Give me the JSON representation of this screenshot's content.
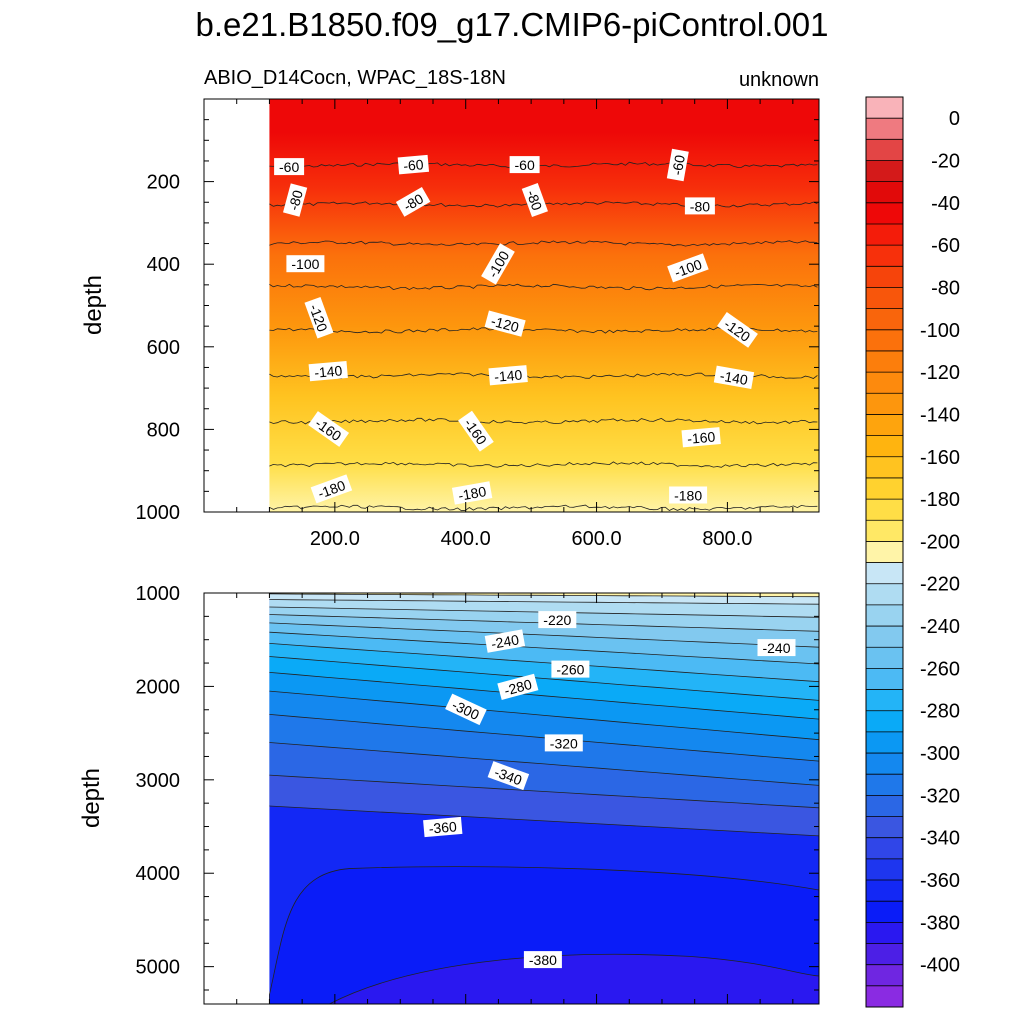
{
  "figure": {
    "title": "b.e21.B1850.f09_g17.CMIP6-piControl.001"
  },
  "chart_data": [
    {
      "type": "contour",
      "panel": "top",
      "left_subtitle": "ABIO_D14Cocn, WPAC_18S-18N",
      "right_subtitle": "unknown",
      "ylabel": "depth",
      "xlabel": "",
      "xlim": [
        0,
        940
      ],
      "ylim": [
        1000,
        0
      ],
      "y_reversed": true,
      "data_x_start": 100,
      "x_ticks": [
        200,
        400,
        600,
        800
      ],
      "x_tick_labels": [
        "200.0",
        "400.0",
        "600.0",
        "800.0"
      ],
      "y_ticks": [
        200,
        400,
        600,
        800,
        1000
      ],
      "y_tick_labels": [
        "200",
        "400",
        "600",
        "800",
        "1000"
      ],
      "contour_levels": [
        -60,
        -80,
        -100,
        -120,
        -140,
        -160,
        -180
      ],
      "contour_depths": [
        160,
        255,
        350,
        455,
        560,
        670,
        780,
        885,
        990
      ],
      "contour_labels": [
        {
          "text": "-60",
          "x": 130,
          "y": 165,
          "angle": 0
        },
        {
          "text": "-60",
          "x": 320,
          "y": 160,
          "angle": -5
        },
        {
          "text": "-60",
          "x": 490,
          "y": 160,
          "angle": 0
        },
        {
          "text": "-60",
          "x": 725,
          "y": 160,
          "angle": -80
        },
        {
          "text": "-80",
          "x": 140,
          "y": 245,
          "angle": -75
        },
        {
          "text": "-80",
          "x": 320,
          "y": 250,
          "angle": -30
        },
        {
          "text": "-80",
          "x": 505,
          "y": 245,
          "angle": 70
        },
        {
          "text": "-80",
          "x": 758,
          "y": 260,
          "angle": 0
        },
        {
          "text": "-100",
          "x": 155,
          "y": 400,
          "angle": 0
        },
        {
          "text": "-100",
          "x": 450,
          "y": 400,
          "angle": -60
        },
        {
          "text": "-100",
          "x": 740,
          "y": 410,
          "angle": -20
        },
        {
          "text": "-120",
          "x": 175,
          "y": 530,
          "angle": 70
        },
        {
          "text": "-120",
          "x": 460,
          "y": 545,
          "angle": 15
        },
        {
          "text": "-120",
          "x": 815,
          "y": 560,
          "angle": 35
        },
        {
          "text": "-140",
          "x": 190,
          "y": 660,
          "angle": -5
        },
        {
          "text": "-140",
          "x": 465,
          "y": 670,
          "angle": -5
        },
        {
          "text": "-140",
          "x": 810,
          "y": 675,
          "angle": 10
        },
        {
          "text": "-160",
          "x": 190,
          "y": 800,
          "angle": 35
        },
        {
          "text": "-160",
          "x": 415,
          "y": 805,
          "angle": 55
        },
        {
          "text": "-160",
          "x": 760,
          "y": 820,
          "angle": -5
        },
        {
          "text": "-180",
          "x": 195,
          "y": 945,
          "angle": -20
        },
        {
          "text": "-180",
          "x": 410,
          "y": 955,
          "angle": -10
        },
        {
          "text": "-180",
          "x": 740,
          "y": 960,
          "angle": 0
        }
      ]
    },
    {
      "type": "contour",
      "panel": "bottom",
      "ylabel": "depth",
      "xlabel": "",
      "xlim": [
        0,
        940
      ],
      "ylim": [
        5400,
        1000
      ],
      "y_reversed": true,
      "data_x_start": 100,
      "x_ticks": [
        200,
        400,
        600,
        800
      ],
      "y_ticks": [
        1000,
        2000,
        3000,
        4000,
        5000
      ],
      "y_tick_labels": [
        "1000",
        "2000",
        "3000",
        "4000",
        "5000"
      ],
      "contour_levels": [
        -220,
        -240,
        -260,
        -280,
        -300,
        -320,
        -340,
        -360,
        -380
      ],
      "contour_lines": [
        {
          "d0": 1010,
          "d1": 1040
        },
        {
          "d0": 1070,
          "d1": 1120
        },
        {
          "d0": 1150,
          "d1": 1260
        },
        {
          "d0": 1230,
          "d1": 1410
        },
        {
          "d0": 1320,
          "d1": 1580
        },
        {
          "d0": 1420,
          "d1": 1760
        },
        {
          "d0": 1540,
          "d1": 1950
        },
        {
          "d0": 1680,
          "d1": 2150
        },
        {
          "d0": 1850,
          "d1": 2350
        },
        {
          "d0": 2050,
          "d1": 2570
        },
        {
          "d0": 2300,
          "d1": 2800
        },
        {
          "d0": 2600,
          "d1": 3060
        },
        {
          "d0": 2950,
          "d1": 3300
        },
        {
          "d0": 3280,
          "d1": 3600
        }
      ],
      "contour_labels": [
        {
          "text": "-220",
          "x": 540,
          "y": 1290,
          "angle": 0
        },
        {
          "text": "-240",
          "x": 460,
          "y": 1520,
          "angle": -10
        },
        {
          "text": "-240",
          "x": 875,
          "y": 1590,
          "angle": 0
        },
        {
          "text": "-260",
          "x": 560,
          "y": 1820,
          "angle": 0
        },
        {
          "text": "-280",
          "x": 480,
          "y": 2010,
          "angle": -15
        },
        {
          "text": "-300",
          "x": 400,
          "y": 2250,
          "angle": 25
        },
        {
          "text": "-320",
          "x": 550,
          "y": 2610,
          "angle": 0
        },
        {
          "text": "-340",
          "x": 465,
          "y": 2960,
          "angle": 20
        },
        {
          "text": "-360",
          "x": 365,
          "y": 3510,
          "angle": -5
        },
        {
          "text": "-380",
          "x": 518,
          "y": 4930,
          "angle": 0
        }
      ]
    }
  ],
  "colorbar": {
    "levels": [
      10,
      0,
      -10,
      -20,
      -30,
      -40,
      -50,
      -60,
      -70,
      -80,
      -90,
      -100,
      -110,
      -120,
      -130,
      -140,
      -150,
      -160,
      -170,
      -180,
      -190,
      -200,
      -210,
      -220,
      -230,
      -240,
      -250,
      -260,
      -270,
      -280,
      -290,
      -300,
      -310,
      -320,
      -330,
      -340,
      -350,
      -360,
      -370,
      -380,
      -390,
      -400,
      -410
    ],
    "colors": [
      "#f9b3b9",
      "#ef7a80",
      "#e34545",
      "#d41a1a",
      "#e10a0a",
      "#ee0808",
      "#f41c0a",
      "#f7300b",
      "#f6440b",
      "#f8560b",
      "#f9650c",
      "#fb710c",
      "#fc7e0c",
      "#fd8a0d",
      "#fd960d",
      "#fea40d",
      "#ffb40f",
      "#ffc320",
      "#ffd22f",
      "#ffde46",
      "#ffe865",
      "#fff4a8",
      "#c8e6f6",
      "#afdcf2",
      "#99d3f0",
      "#82c9ef",
      "#6ac2f1",
      "#4cbaf4",
      "#23b4f7",
      "#0aaaf7",
      "#0b98f3",
      "#1488ef",
      "#1f78ea",
      "#2b67e5",
      "#3a56e1",
      "#3046e8",
      "#1e36ef",
      "#1328f5",
      "#0a1cf8",
      "#2a18f0",
      "#4c1fe6",
      "#6f26e1",
      "#8a2be2"
    ],
    "tick_labels": [
      "0",
      "-20",
      "-40",
      "-60",
      "-80",
      "-100",
      "-120",
      "-140",
      "-160",
      "-180",
      "-200",
      "-220",
      "-240",
      "-260",
      "-280",
      "-300",
      "-320",
      "-340",
      "-360",
      "-380",
      "-400"
    ]
  }
}
